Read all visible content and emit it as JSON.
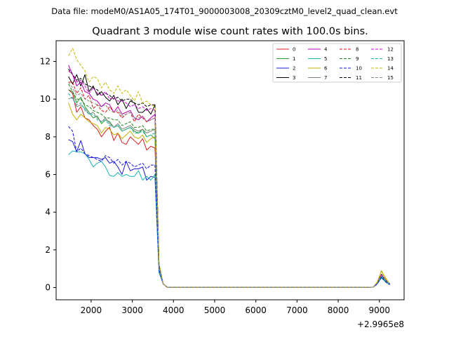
{
  "suptitle": "Data file: modeM0/AS1A05_174T01_9000003008_20309cztM0_level2_quad_clean.evt",
  "chart_data": {
    "type": "line",
    "title": "Quadrant 3 module wise count rates with 100.0s bins.",
    "xlabel": "",
    "ylabel": "",
    "x_offset_label": "+2.9965e8",
    "xlim": [
      1150,
      9600
    ],
    "ylim": [
      -0.65,
      13.1
    ],
    "x_ticks": [
      2000,
      3000,
      4000,
      5000,
      6000,
      7000,
      8000,
      9000
    ],
    "y_ticks": [
      0,
      2,
      4,
      6,
      8,
      10,
      12
    ],
    "grid": false,
    "legend_position": "top-right",
    "legend_columns": 4,
    "colors": [
      "#d62020",
      "#2a9a2a",
      "#1a1ad9",
      "#000000",
      "#b400b4",
      "#19b6b6",
      "#c2b000",
      "#808080",
      "#e01010",
      "#1a8a1a",
      "#1010e0",
      "#000000",
      "#d800d8",
      "#20b8b0",
      "#c8b800",
      "#8a8a8a"
    ],
    "dashed": [
      false,
      false,
      false,
      false,
      false,
      false,
      false,
      false,
      true,
      true,
      true,
      true,
      true,
      true,
      true,
      true
    ],
    "x": [
      1450,
      1550,
      1650,
      1750,
      1850,
      1950,
      2050,
      2150,
      2250,
      2350,
      2450,
      2550,
      2650,
      2750,
      2850,
      2950,
      3050,
      3150,
      3250,
      3350,
      3450,
      3550,
      3650,
      3750,
      3850,
      3950,
      4500,
      5000,
      5500,
      6000,
      6500,
      7000,
      7500,
      8000,
      8500,
      8850,
      8950,
      9050,
      9150,
      9250
    ],
    "series": [
      {
        "name": "0",
        "values": [
          10.5,
          10.3,
          9.3,
          9.6,
          9.0,
          8.9,
          8.6,
          8.4,
          8.0,
          8.3,
          8.5,
          7.8,
          8.2,
          7.7,
          7.6,
          8.0,
          7.8,
          7.6,
          7.9,
          7.3,
          7.5,
          7.4,
          1.0,
          0.2,
          0.01,
          0.01,
          0.01,
          0.01,
          0.01,
          0.01,
          0.01,
          0.01,
          0.01,
          0.01,
          0.01,
          0.02,
          0.2,
          0.55,
          0.35,
          0.15
        ]
      },
      {
        "name": "1",
        "values": [
          10.5,
          10.4,
          9.8,
          10.1,
          9.6,
          9.3,
          9.0,
          9.1,
          8.7,
          8.9,
          8.8,
          8.5,
          8.6,
          8.3,
          8.4,
          8.5,
          8.3,
          8.2,
          8.4,
          8.0,
          8.1,
          7.9,
          1.0,
          0.2,
          0.01,
          0.01,
          0.01,
          0.01,
          0.01,
          0.01,
          0.01,
          0.01,
          0.01,
          0.01,
          0.01,
          0.02,
          0.2,
          0.6,
          0.35,
          0.15
        ]
      },
      {
        "name": "2",
        "values": [
          7.85,
          7.75,
          7.2,
          7.8,
          7.1,
          6.9,
          6.9,
          6.9,
          6.8,
          6.9,
          6.6,
          6.7,
          6.4,
          6.0,
          6.7,
          6.2,
          6.3,
          6.3,
          6.4,
          5.7,
          5.9,
          5.85,
          0.8,
          0.2,
          0.01,
          0.01,
          0.01,
          0.01,
          0.01,
          0.01,
          0.01,
          0.01,
          0.01,
          0.01,
          0.01,
          0.02,
          0.2,
          0.55,
          0.3,
          0.15
        ]
      },
      {
        "name": "3",
        "values": [
          11.2,
          10.8,
          11.3,
          10.7,
          11.3,
          10.4,
          10.7,
          10.2,
          10.4,
          10.1,
          9.9,
          10.2,
          9.7,
          10.0,
          9.5,
          9.9,
          9.8,
          9.3,
          9.3,
          9.5,
          9.2,
          9.7,
          1.2,
          0.2,
          0.01,
          0.01,
          0.01,
          0.01,
          0.01,
          0.01,
          0.01,
          0.01,
          0.01,
          0.01,
          0.01,
          0.02,
          0.25,
          0.7,
          0.4,
          0.2
        ]
      },
      {
        "name": "4",
        "values": [
          11.8,
          11.3,
          10.7,
          10.9,
          10.4,
          10.3,
          10.0,
          9.9,
          9.6,
          9.8,
          9.7,
          9.3,
          9.6,
          9.2,
          9.3,
          9.4,
          9.0,
          8.9,
          9.1,
          8.8,
          9.0,
          9.2,
          1.1,
          0.2,
          0.01,
          0.01,
          0.01,
          0.01,
          0.01,
          0.01,
          0.01,
          0.01,
          0.01,
          0.01,
          0.01,
          0.02,
          0.25,
          0.7,
          0.4,
          0.2
        ]
      },
      {
        "name": "5",
        "values": [
          7.05,
          7.25,
          7.2,
          7.2,
          7.1,
          6.8,
          6.4,
          6.6,
          6.7,
          6.4,
          5.95,
          5.9,
          6.1,
          5.9,
          6.0,
          5.9,
          5.9,
          6.2,
          5.7,
          5.9,
          5.7,
          6.0,
          0.8,
          0.2,
          0.01,
          0.01,
          0.01,
          0.01,
          0.01,
          0.01,
          0.01,
          0.01,
          0.01,
          0.01,
          0.01,
          0.02,
          0.2,
          0.5,
          0.3,
          0.15
        ]
      },
      {
        "name": "6",
        "values": [
          9.8,
          9.2,
          8.9,
          9.2,
          9.0,
          8.8,
          8.7,
          8.6,
          8.2,
          8.5,
          8.4,
          8.1,
          8.2,
          7.9,
          8.1,
          8.3,
          8.0,
          7.9,
          8.1,
          7.7,
          7.9,
          8.0,
          1.0,
          0.2,
          0.01,
          0.01,
          0.01,
          0.01,
          0.01,
          0.01,
          0.01,
          0.01,
          0.01,
          0.01,
          0.01,
          0.02,
          0.3,
          0.9,
          0.5,
          0.2
        ]
      },
      {
        "name": "7",
        "values": [
          10.0,
          10.1,
          9.6,
          9.7,
          9.5,
          9.2,
          9.3,
          9.0,
          8.8,
          9.0,
          8.7,
          8.5,
          8.7,
          8.4,
          8.5,
          8.6,
          8.4,
          8.3,
          8.4,
          8.2,
          8.3,
          8.4,
          1.0,
          0.2,
          0.01,
          0.01,
          0.01,
          0.01,
          0.01,
          0.01,
          0.01,
          0.01,
          0.01,
          0.01,
          0.01,
          0.02,
          0.25,
          0.65,
          0.4,
          0.2
        ]
      },
      {
        "name": "8",
        "values": [
          10.9,
          10.9,
          10.3,
          10.6,
          10.0,
          10.2,
          9.5,
          9.7,
          9.4,
          9.3,
          9.6,
          9.3,
          9.3,
          9.0,
          9.2,
          9.3,
          8.8,
          9.2,
          9.0,
          8.8,
          8.9,
          9.0,
          1.1,
          0.2,
          0.01,
          0.01,
          0.01,
          0.01,
          0.01,
          0.01,
          0.01,
          0.01,
          0.01,
          0.01,
          0.01,
          0.02,
          0.25,
          0.7,
          0.4,
          0.2
        ]
      },
      {
        "name": "9",
        "values": [
          10.8,
          10.4,
          10.0,
          10.0,
          9.7,
          9.6,
          9.4,
          9.3,
          9.2,
          9.0,
          9.0,
          8.9,
          8.9,
          8.6,
          8.7,
          8.8,
          8.5,
          8.5,
          8.6,
          8.3,
          8.4,
          8.4,
          1.0,
          0.2,
          0.01,
          0.01,
          0.01,
          0.01,
          0.01,
          0.01,
          0.01,
          0.01,
          0.01,
          0.01,
          0.01,
          0.02,
          0.25,
          0.65,
          0.4,
          0.2
        ]
      },
      {
        "name": "10",
        "values": [
          8.55,
          8.3,
          7.2,
          7.4,
          7.1,
          7.0,
          6.9,
          6.8,
          6.7,
          7.0,
          6.9,
          6.6,
          6.8,
          6.5,
          6.7,
          6.6,
          6.4,
          6.5,
          6.6,
          6.3,
          6.5,
          6.5,
          0.9,
          0.2,
          0.01,
          0.01,
          0.01,
          0.01,
          0.01,
          0.01,
          0.01,
          0.01,
          0.01,
          0.01,
          0.01,
          0.02,
          0.2,
          0.55,
          0.3,
          0.15
        ]
      },
      {
        "name": "11",
        "values": [
          11.6,
          11.3,
          11.0,
          11.1,
          10.8,
          10.7,
          10.6,
          10.5,
          10.2,
          10.3,
          10.2,
          10.0,
          10.1,
          9.9,
          10.0,
          10.0,
          9.8,
          9.7,
          9.8,
          9.6,
          9.7,
          9.7,
          1.2,
          0.2,
          0.01,
          0.01,
          0.01,
          0.01,
          0.01,
          0.01,
          0.01,
          0.01,
          0.01,
          0.01,
          0.01,
          0.02,
          0.25,
          0.7,
          0.4,
          0.2
        ]
      },
      {
        "name": "12",
        "values": [
          11.5,
          11.3,
          10.9,
          11.0,
          10.7,
          10.3,
          10.6,
          10.3,
          10.2,
          10.4,
          10.0,
          10.1,
          9.9,
          9.9,
          9.8,
          9.6,
          9.7,
          9.5,
          9.6,
          9.4,
          9.5,
          9.4,
          1.2,
          0.2,
          0.01,
          0.01,
          0.01,
          0.01,
          0.01,
          0.01,
          0.01,
          0.01,
          0.01,
          0.01,
          0.01,
          0.02,
          0.25,
          0.7,
          0.4,
          0.2
        ]
      },
      {
        "name": "13",
        "values": [
          10.3,
          10.0,
          9.7,
          9.8,
          9.4,
          9.2,
          9.2,
          8.9,
          8.8,
          8.9,
          8.6,
          8.5,
          8.6,
          8.3,
          8.4,
          8.5,
          8.2,
          8.2,
          8.3,
          8.0,
          8.1,
          8.2,
          1.0,
          0.2,
          0.01,
          0.01,
          0.01,
          0.01,
          0.01,
          0.01,
          0.01,
          0.01,
          0.01,
          0.01,
          0.01,
          0.02,
          0.25,
          0.6,
          0.35,
          0.2
        ]
      },
      {
        "name": "14",
        "values": [
          12.3,
          12.7,
          12.1,
          11.8,
          11.5,
          10.9,
          11.2,
          11.1,
          10.6,
          10.9,
          10.5,
          10.3,
          10.7,
          10.3,
          10.5,
          10.2,
          9.9,
          10.4,
          9.8,
          9.9,
          9.7,
          9.6,
          1.3,
          0.2,
          0.01,
          0.01,
          0.01,
          0.01,
          0.01,
          0.01,
          0.01,
          0.01,
          0.01,
          0.01,
          0.01,
          0.02,
          0.3,
          0.85,
          0.45,
          0.2
        ]
      },
      {
        "name": "15",
        "values": [
          10.9,
          10.6,
          10.2,
          10.3,
          10.0,
          9.9,
          9.8,
          9.7,
          9.6,
          9.7,
          9.4,
          9.3,
          9.4,
          9.1,
          9.2,
          9.3,
          9.0,
          9.0,
          9.1,
          8.8,
          8.9,
          9.0,
          1.1,
          0.2,
          0.01,
          0.01,
          0.01,
          0.01,
          0.01,
          0.01,
          0.01,
          0.01,
          0.01,
          0.01,
          0.01,
          0.02,
          0.25,
          0.65,
          0.4,
          0.2
        ]
      }
    ]
  }
}
